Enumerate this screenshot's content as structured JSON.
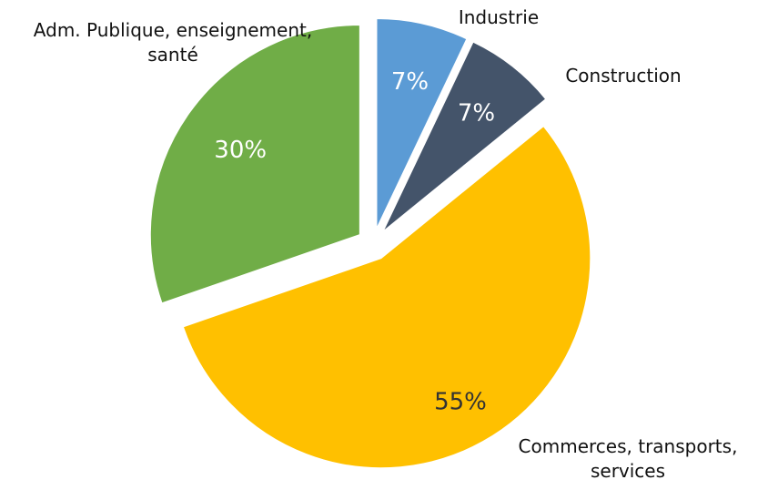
{
  "chart_data": {
    "type": "pie",
    "exploded": true,
    "start_angle_deg": 0,
    "direction": "clockwise",
    "slices": [
      {
        "label_lines": [
          "Industrie"
        ],
        "value": 7,
        "value_label": "7%",
        "color": "#5b9bd5",
        "value_label_color": "#ffffff"
      },
      {
        "label_lines": [
          "Construction"
        ],
        "value": 7,
        "value_label": "7%",
        "color": "#44546a",
        "value_label_color": "#ffffff"
      },
      {
        "label_lines": [
          "Commerces, transports,",
          "services"
        ],
        "value": 55,
        "value_label": "55%",
        "color": "#ffc000",
        "value_label_color": "#333333"
      },
      {
        "label_lines": [
          "Adm. Publique, enseignement,",
          "santé"
        ],
        "value": 30,
        "value_label": "30%",
        "color": "#70ad47",
        "value_label_color": "#ffffff"
      }
    ]
  }
}
